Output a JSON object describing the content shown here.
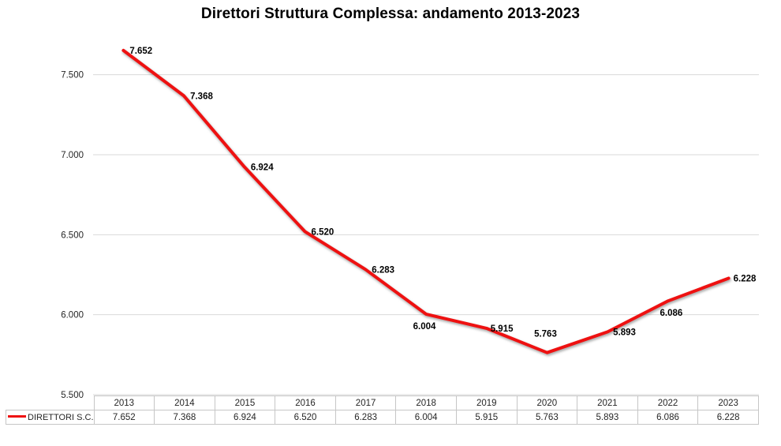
{
  "title": "Direttori Struttura Complessa: andamento 2013-2023",
  "chart_data": {
    "type": "line",
    "title": "Direttori Struttura Complessa: andamento 2013-2023",
    "categories": [
      "2013",
      "2014",
      "2015",
      "2016",
      "2017",
      "2018",
      "2019",
      "2020",
      "2021",
      "2022",
      "2023"
    ],
    "series": [
      {
        "name": "DIRETTORI S.C.",
        "values": [
          7652,
          7368,
          6924,
          6520,
          6283,
          6004,
          5915,
          5763,
          5893,
          6086,
          6228
        ],
        "labels": [
          "7.652",
          "7.368",
          "6.924",
          "6.520",
          "6.283",
          "6.004",
          "5.915",
          "5.763",
          "5.893",
          "6.086",
          "6.228"
        ]
      }
    ],
    "xlabel": "",
    "ylabel": "",
    "ylim": [
      5500,
      7750
    ],
    "yticks": {
      "values": [
        7500,
        7000,
        6500,
        6000,
        5500
      ],
      "labels": [
        "7.500",
        "7.000",
        "6.500",
        "6.000",
        "5.500"
      ]
    },
    "grid": "horizontal",
    "legend_position": "bottom-left-table-row",
    "data_table_shown": true
  },
  "colors": {
    "line": "#ee1111",
    "gridline": "#d9d9d9",
    "table_border": "#c6c6c6",
    "title_text": "#000000",
    "tick_text": "#262626",
    "data_label_text": "#000000"
  }
}
